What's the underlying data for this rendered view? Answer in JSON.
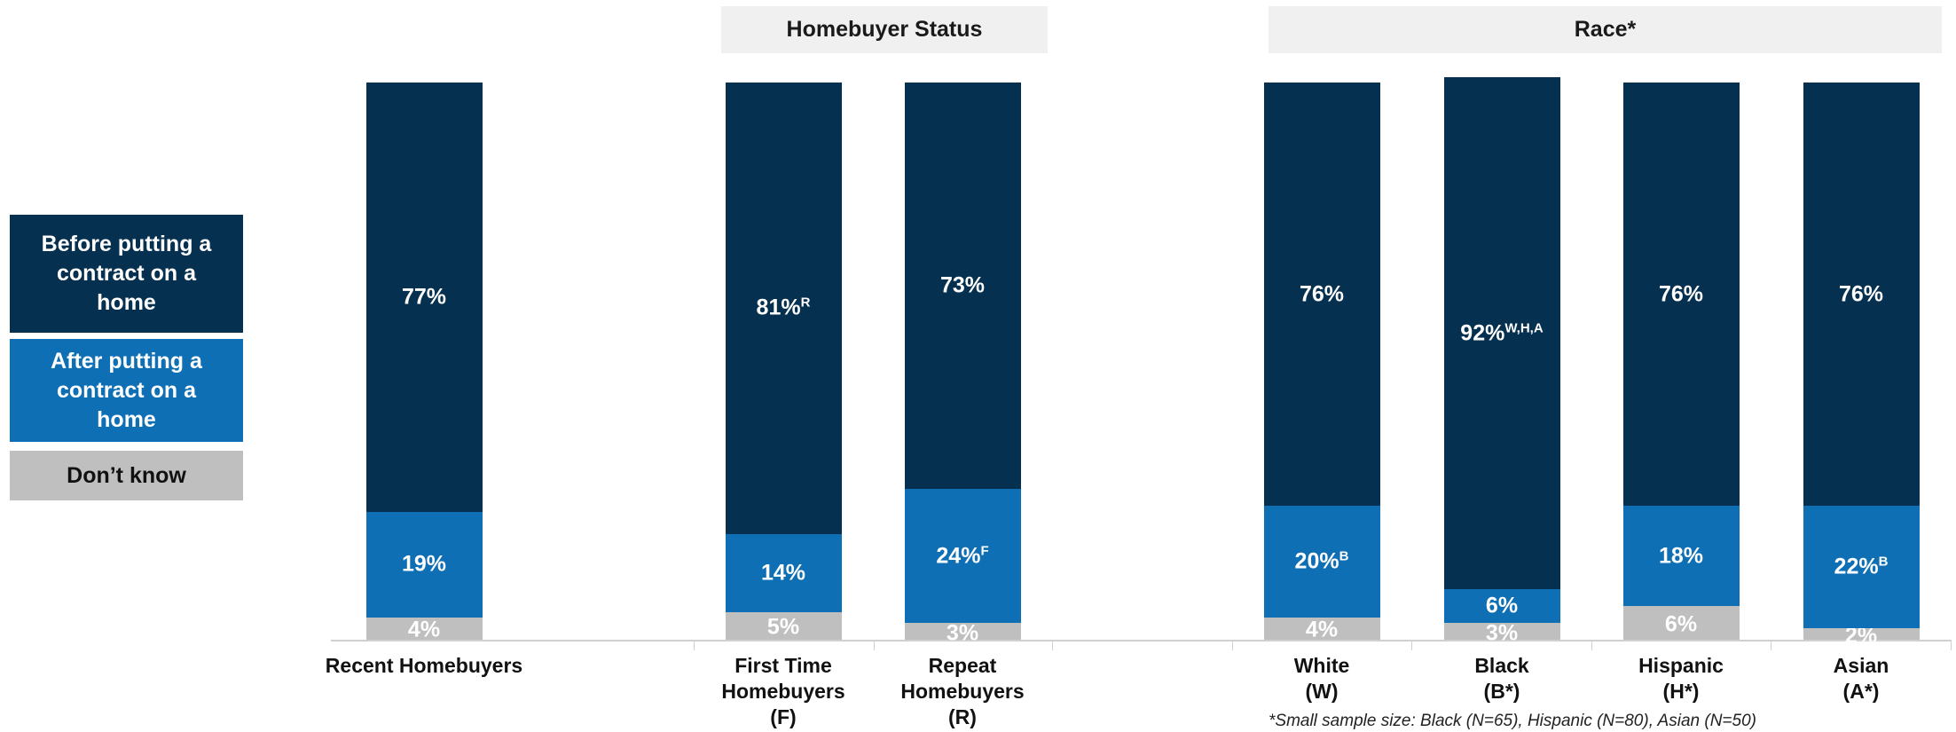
{
  "chart_data": {
    "type": "stacked_bar",
    "categories": [
      "Recent Homebuyers",
      "First Time\nHomebuyers\n(F)",
      "Repeat\nHomebuyers\n(R)",
      "White\n(W)",
      "Black\n(B*)",
      "Hispanic\n(H*)",
      "Asian\n(A*)"
    ],
    "groups": [
      "Homebuyer Status",
      "Race*"
    ],
    "ylim": [
      0,
      100
    ],
    "series": [
      {
        "name": "Before putting a contract on a home",
        "color": "#06304f",
        "values": [
          77,
          81,
          73,
          76,
          92,
          76,
          76
        ],
        "value_labels": [
          "77%",
          "81%",
          "73%",
          "76%",
          "92%",
          "76%",
          "76%"
        ],
        "superscripts": [
          null,
          "R",
          null,
          null,
          "W,H,A",
          null,
          null
        ]
      },
      {
        "name": "After putting a contract on a home",
        "color": "#0e6fb5",
        "values": [
          19,
          14,
          24,
          20,
          6,
          18,
          22
        ],
        "value_labels": [
          "19%",
          "14%",
          "24%",
          "20%",
          "6%",
          "18%",
          "22%"
        ],
        "superscripts": [
          null,
          null,
          "F",
          "B",
          null,
          null,
          "B"
        ]
      },
      {
        "name": "Don’t know",
        "color": "#bfbfbf",
        "values": [
          4,
          5,
          3,
          4,
          3,
          6,
          2
        ],
        "value_labels": [
          "4%",
          "5%",
          "3%",
          "4%",
          "3%",
          "6%",
          "2%"
        ],
        "superscripts": [
          null,
          null,
          null,
          null,
          null,
          null,
          null
        ]
      }
    ],
    "footnote": "*Small sample size: Black (N=65), Hispanic (N=80), Asian (N=50)"
  }
}
